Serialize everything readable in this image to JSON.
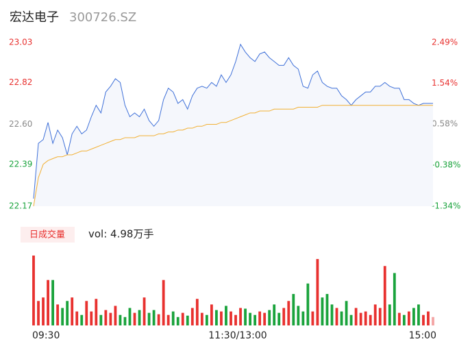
{
  "header": {
    "name": "宏达电子",
    "code": "300726.SZ"
  },
  "chart_data": [
    {
      "type": "line",
      "xlim": [
        0,
        83
      ],
      "ylim": [
        22.17,
        23.03
      ],
      "yticks": [
        23.03,
        22.82,
        {
          "value": 22.6,
          "label": "22.60"
        },
        22.39,
        22.17
      ],
      "y2lim": [
        -1.34,
        2.49
      ],
      "y2ticks": [
        {
          "value": 2.49,
          "label": "2.49%"
        },
        {
          "value": 1.54,
          "label": "1.54%"
        },
        {
          "value": 0.58,
          "label": "0.58%"
        },
        {
          "value": -0.38,
          "label": "-0.38%"
        },
        {
          "value": -1.34,
          "label": "-1.34%"
        }
      ],
      "ytick_colors": [
        "#e8312f",
        "#e8312f",
        "#888888",
        "#1aa33c",
        "#1aa33c"
      ],
      "area_color": "#f5f7fc",
      "series": [
        {
          "color": "#3d6fd8",
          "values": [
            22.21,
            22.5,
            22.52,
            22.61,
            22.5,
            22.57,
            22.53,
            22.44,
            22.55,
            22.59,
            22.55,
            22.57,
            22.64,
            22.7,
            22.66,
            22.77,
            22.8,
            22.84,
            22.82,
            22.7,
            22.64,
            22.66,
            22.64,
            22.68,
            22.62,
            22.59,
            22.62,
            22.73,
            22.79,
            22.77,
            22.71,
            22.73,
            22.68,
            22.75,
            22.79,
            22.8,
            22.79,
            22.82,
            22.8,
            22.86,
            22.82,
            22.86,
            22.93,
            23.02,
            22.98,
            22.95,
            22.93,
            22.97,
            22.98,
            22.95,
            22.93,
            22.91,
            22.91,
            22.95,
            22.91,
            22.89,
            22.8,
            22.79,
            22.86,
            22.88,
            22.82,
            22.8,
            22.79,
            22.79,
            22.75,
            22.73,
            22.7,
            22.73,
            22.75,
            22.77,
            22.77,
            22.8,
            22.8,
            22.82,
            22.8,
            22.79,
            22.79,
            22.73,
            22.73,
            22.71,
            22.7,
            22.71,
            22.71,
            22.71
          ]
        },
        {
          "color": "#f2b033",
          "values": [
            22.17,
            22.32,
            22.39,
            22.41,
            22.42,
            22.43,
            22.43,
            22.44,
            22.44,
            22.45,
            22.46,
            22.46,
            22.47,
            22.48,
            22.49,
            22.5,
            22.51,
            22.52,
            22.52,
            22.53,
            22.53,
            22.53,
            22.54,
            22.54,
            22.54,
            22.54,
            22.55,
            22.55,
            22.56,
            22.56,
            22.57,
            22.57,
            22.58,
            22.58,
            22.59,
            22.59,
            22.6,
            22.6,
            22.6,
            22.61,
            22.61,
            22.62,
            22.63,
            22.64,
            22.65,
            22.66,
            22.66,
            22.67,
            22.67,
            22.67,
            22.68,
            22.68,
            22.68,
            22.68,
            22.68,
            22.69,
            22.69,
            22.69,
            22.69,
            22.69,
            22.7,
            22.7,
            22.7,
            22.7,
            22.7,
            22.7,
            22.7,
            22.7,
            22.7,
            22.7,
            22.7,
            22.7,
            22.7,
            22.7,
            22.7,
            22.7,
            22.7,
            22.7,
            22.7,
            22.7,
            22.7,
            22.7,
            22.7,
            22.7
          ]
        }
      ]
    },
    {
      "type": "bar",
      "legend_label": "日成交量",
      "vol_label": "vol: 4.98万手",
      "xlim": [
        0,
        83
      ],
      "ylim": [
        0,
        100
      ],
      "xticks": [
        {
          "value": 0,
          "label": "09:30"
        },
        {
          "value": 41,
          "label": "11:30/13:00"
        },
        {
          "value": 83,
          "label": "15:00"
        }
      ],
      "up_color": "#e8312f",
      "down_color": "#1aa33c",
      "last_color": "#f4a5a5",
      "values": [
        100,
        35,
        40,
        65,
        65,
        30,
        25,
        35,
        40,
        20,
        15,
        35,
        20,
        38,
        15,
        22,
        18,
        28,
        15,
        12,
        25,
        18,
        22,
        40,
        18,
        22,
        16,
        65,
        15,
        20,
        12,
        18,
        14,
        25,
        38,
        18,
        15,
        30,
        22,
        20,
        28,
        20,
        15,
        25,
        24,
        18,
        15,
        20,
        18,
        22,
        30,
        18,
        25,
        35,
        45,
        28,
        20,
        60,
        20,
        95,
        40,
        45,
        30,
        25,
        20,
        35,
        15,
        25,
        18,
        20,
        15,
        30,
        25,
        85,
        30,
        75,
        18,
        15,
        20,
        25,
        30,
        15,
        20,
        12
      ]
    }
  ]
}
